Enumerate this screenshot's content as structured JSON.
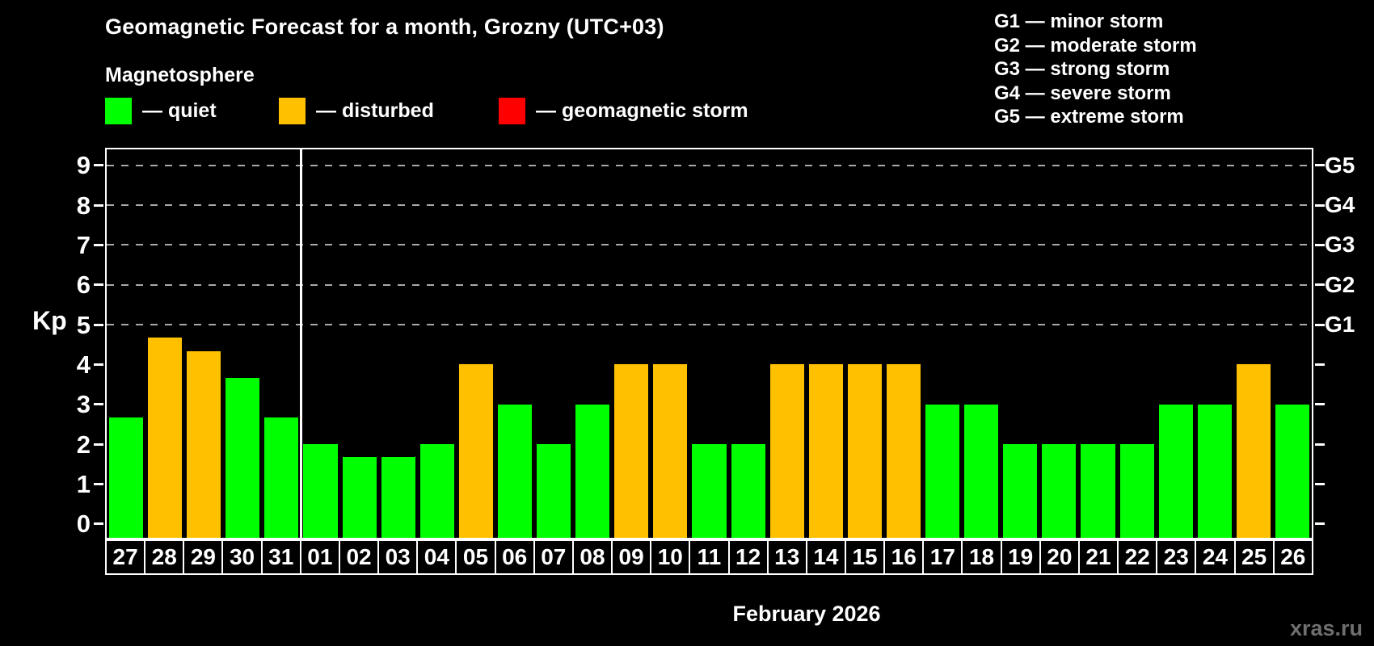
{
  "header": {
    "title": "Geomagnetic Forecast for a month, Grozny (UTC+03)",
    "subtitle": "Magnetosphere"
  },
  "legend": {
    "items": [
      {
        "name": "quiet",
        "label": "— quiet",
        "color": "#00FF00"
      },
      {
        "name": "disturbed",
        "label": "— disturbed",
        "color": "#FFC000"
      },
      {
        "name": "storm",
        "label": "— geomagnetic storm",
        "color": "#FF0000"
      }
    ]
  },
  "g_legend": {
    "lines": [
      "G1 — minor storm",
      "G2 — moderate storm",
      "G3 — strong storm",
      "G4 — severe storm",
      "G5 — extreme storm"
    ]
  },
  "axis": {
    "kp_label": "Kp"
  },
  "footer": {
    "month_label": "February 2026",
    "watermark": "xras.ru"
  },
  "chart_data": {
    "type": "bar",
    "title": "Geomagnetic Forecast for a month, Grozny (UTC+03)",
    "ylabel": "Kp",
    "xlabel": "February 2026",
    "ylim": [
      -0.35,
      9.4
    ],
    "yticks": [
      0,
      1,
      2,
      3,
      4,
      5,
      6,
      7,
      8,
      9
    ],
    "gridlines_at": [
      5,
      6,
      7,
      8,
      9
    ],
    "grid_style": "dashed",
    "legend_position": "top",
    "right_axis_labels": {
      "5": "G1",
      "6": "G2",
      "7": "G3",
      "8": "G4",
      "9": "G5"
    },
    "month_separator_after_index": 4,
    "status_colors": {
      "quiet": "#00FF00",
      "disturbed": "#FFC000",
      "storm": "#FF0000"
    },
    "days": [
      "27",
      "28",
      "29",
      "30",
      "31",
      "01",
      "02",
      "03",
      "04",
      "05",
      "06",
      "07",
      "08",
      "09",
      "10",
      "11",
      "12",
      "13",
      "14",
      "15",
      "16",
      "17",
      "18",
      "19",
      "20",
      "21",
      "22",
      "23",
      "24",
      "25",
      "26"
    ],
    "values": [
      2.67,
      4.67,
      4.33,
      3.67,
      2.67,
      2.0,
      1.67,
      1.67,
      2.0,
      4.0,
      3.0,
      2.0,
      3.0,
      4.0,
      4.0,
      2.0,
      2.0,
      4.0,
      4.0,
      4.0,
      4.0,
      3.0,
      3.0,
      2.0,
      2.0,
      2.0,
      2.0,
      3.0,
      3.0,
      4.0,
      3.0
    ],
    "status": [
      "quiet",
      "disturbed",
      "disturbed",
      "quiet",
      "quiet",
      "quiet",
      "quiet",
      "quiet",
      "quiet",
      "disturbed",
      "quiet",
      "quiet",
      "quiet",
      "disturbed",
      "disturbed",
      "quiet",
      "quiet",
      "disturbed",
      "disturbed",
      "disturbed",
      "disturbed",
      "quiet",
      "quiet",
      "quiet",
      "quiet",
      "quiet",
      "quiet",
      "quiet",
      "quiet",
      "disturbed",
      "quiet"
    ]
  }
}
